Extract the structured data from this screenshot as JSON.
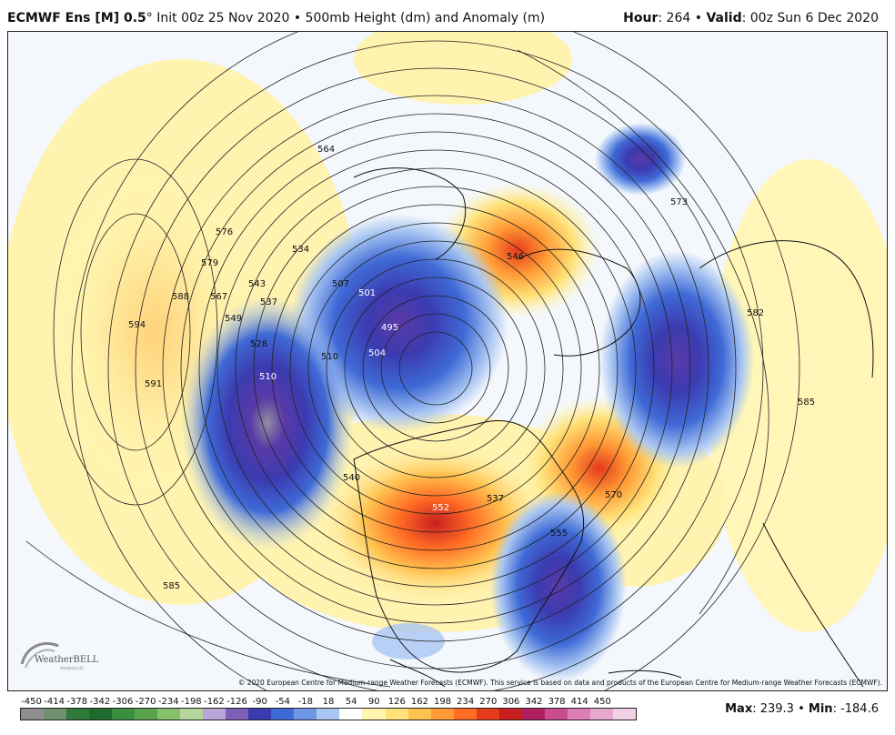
{
  "header": {
    "model": "ECMWF Ens [M] 0.5",
    "degree": "°",
    "init": "Init 00z 25 Nov 2020",
    "sep": "•",
    "field": "500mb Height (dm) and Anomaly (m)",
    "hour_label": "Hour",
    "hour_value": "264",
    "valid_label": "Valid",
    "valid_value": "00z Sun 6 Dec 2020"
  },
  "copyright": "© 2020 European Centre for Medium-range Weather Forecasts (ECMWF). This service is based on data and products of the European Centre for Medium-range Weather Forecasts (ECMWF).",
  "logo": {
    "name": "WeatherBELL",
    "sub": "Analytics LLC"
  },
  "contour_labels": [
    "564",
    "585",
    "582",
    "576",
    "579",
    "588",
    "567",
    "549",
    "528",
    "543",
    "537",
    "534",
    "594",
    "591",
    "588",
    "510",
    "507",
    "501",
    "495",
    "504",
    "510",
    "546",
    "540",
    "552",
    "537",
    "555",
    "570",
    "573",
    "582",
    "585"
  ],
  "legend": {
    "ticks": [
      "-450",
      "-414",
      "-378",
      "-342",
      "-306",
      "-270",
      "-234",
      "-198",
      "-162",
      "-126",
      "-90",
      "-54",
      "-18",
      "18",
      "54",
      "90",
      "126",
      "162",
      "198",
      "234",
      "270",
      "306",
      "342",
      "378",
      "414",
      "450"
    ],
    "colors": [
      "#8e8e8e",
      "#6f8f6f",
      "#2f7a3a",
      "#1f6b2f",
      "#3a8f3f",
      "#5aa34e",
      "#86c06a",
      "#b4d69a",
      "#b8a6d6",
      "#7e5fb8",
      "#3b3bb0",
      "#3f6ad6",
      "#6f97e6",
      "#a9c6f2",
      "#ffffff",
      "#fff6b0",
      "#ffe27a",
      "#ffc24f",
      "#ff9a35",
      "#ff6a24",
      "#e63a1c",
      "#c81f1f",
      "#b02060",
      "#c84d8e",
      "#db7fb4",
      "#e6a8cf",
      "#f0d0e4"
    ]
  },
  "stats": {
    "max_label": "Max",
    "max_value": "239.3",
    "sep": "•",
    "min_label": "Min",
    "min_value": "-184.6"
  }
}
